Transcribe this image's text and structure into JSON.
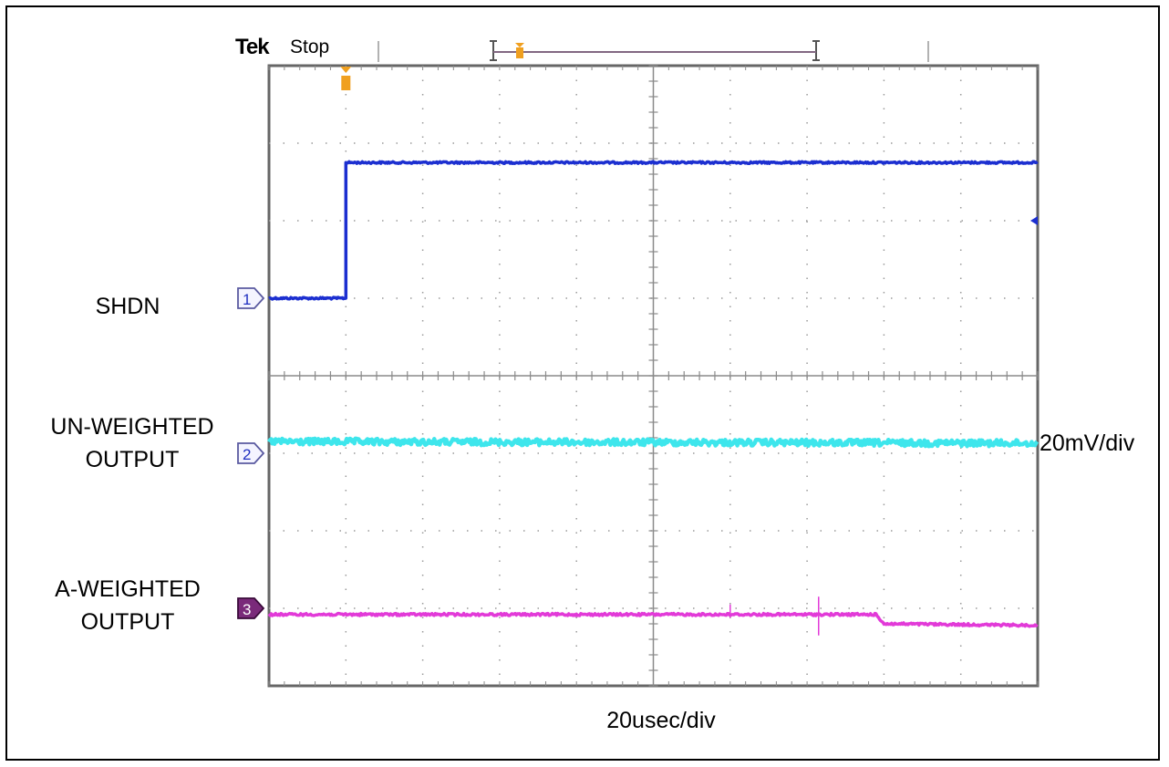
{
  "header": {
    "brand": "Tek",
    "status": "Stop"
  },
  "labels": {
    "ch1": [
      "SHDN"
    ],
    "ch2": [
      "UN-WEIGHTED",
      "OUTPUT"
    ],
    "ch3": [
      "A-WEIGHTED",
      "OUTPUT"
    ],
    "ch2_scale": "20mV/div",
    "timebase": "20usec/div"
  },
  "chart_data": {
    "type": "line",
    "title": "",
    "xlabel": "20usec/div",
    "ylabel": "",
    "grid": true,
    "divisions": {
      "x": 10,
      "y": 8
    },
    "xlim": [
      0,
      10
    ],
    "ylim": [
      -4,
      4
    ],
    "trigger_x_div": 1,
    "series": [
      {
        "name": "SHDN",
        "channel": "1",
        "color": "#1c2fd0",
        "marker_y_div": 1,
        "x": [
          0,
          1,
          1,
          10
        ],
        "y": [
          1,
          1,
          2.75,
          2.75
        ]
      },
      {
        "name": "UN-WEIGHTED OUTPUT",
        "channel": "2",
        "color": "#3ee6ec",
        "marker_y_div": -1,
        "x": [
          0,
          10
        ],
        "y": [
          -0.85,
          -0.87
        ]
      },
      {
        "name": "A-WEIGHTED OUTPUT",
        "channel": "3",
        "color": "#e23ad8",
        "marker_y_div": -3,
        "x": [
          0,
          3.4,
          3.6,
          7.0,
          7.9,
          8.0,
          10
        ],
        "y": [
          -3.08,
          -3.08,
          -3.08,
          -3.08,
          -3.08,
          -3.2,
          -3.22
        ]
      }
    ],
    "ch1_reference_marker_y_div": 2
  }
}
